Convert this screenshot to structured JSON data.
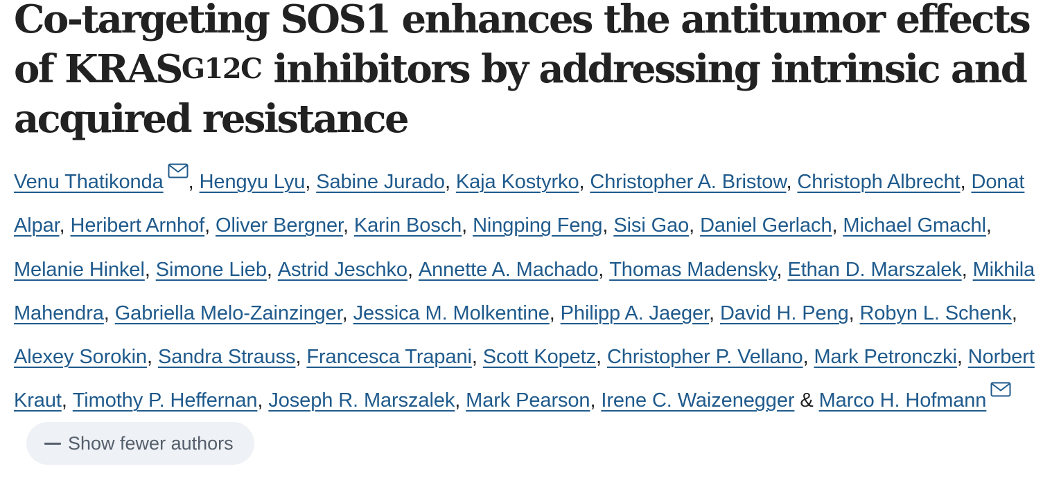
{
  "article": {
    "title_part1": "Co-targeting SOS1 enhances the antitumor effects of KRAS",
    "title_sup": "G12C",
    "title_part2": " inhibitors by addressing intrinsic and acquired resistance"
  },
  "authors": [
    {
      "name": "Venu Thatikonda",
      "corresponding": true
    },
    {
      "name": "Hengyu Lyu"
    },
    {
      "name": "Sabine Jurado"
    },
    {
      "name": "Kaja Kostyrko"
    },
    {
      "name": "Christopher A. Bristow"
    },
    {
      "name": "Christoph Albrecht"
    },
    {
      "name": "Donat Alpar"
    },
    {
      "name": "Heribert Arnhof"
    },
    {
      "name": "Oliver Bergner"
    },
    {
      "name": "Karin Bosch"
    },
    {
      "name": "Ningping Feng"
    },
    {
      "name": "Sisi Gao"
    },
    {
      "name": "Daniel Gerlach"
    },
    {
      "name": "Michael Gmachl"
    },
    {
      "name": "Melanie Hinkel"
    },
    {
      "name": "Simone Lieb"
    },
    {
      "name": "Astrid Jeschko"
    },
    {
      "name": "Annette A. Machado"
    },
    {
      "name": "Thomas Madensky"
    },
    {
      "name": "Ethan D. Marszalek"
    },
    {
      "name": "Mikhila Mahendra"
    },
    {
      "name": "Gabriella Melo-Zainzinger"
    },
    {
      "name": "Jessica M. Molkentine"
    },
    {
      "name": "Philipp A. Jaeger"
    },
    {
      "name": "David H. Peng"
    },
    {
      "name": "Robyn L. Schenk"
    },
    {
      "name": "Alexey Sorokin"
    },
    {
      "name": "Sandra Strauss"
    },
    {
      "name": "Francesca Trapani"
    },
    {
      "name": "Scott Kopetz"
    },
    {
      "name": "Christopher P. Vellano"
    },
    {
      "name": "Mark Petronczki"
    },
    {
      "name": "Norbert Kraut"
    },
    {
      "name": "Timothy P. Heffernan"
    },
    {
      "name": "Joseph R. Marszalek"
    },
    {
      "name": "Mark Pearson"
    },
    {
      "name": "Irene C. Waizenegger"
    },
    {
      "name": "Marco H. Hofmann",
      "corresponding": true
    }
  ],
  "separators": {
    "comma": ", ",
    "ampersand": " & "
  },
  "toggle": {
    "label": "Show fewer authors",
    "icon": "minus-icon"
  },
  "colors": {
    "link": "#1f5a8c",
    "text": "#222222",
    "button_bg": "#eef1f5",
    "button_text": "#555f6b"
  },
  "icons": {
    "corresponding": "mail-icon"
  }
}
